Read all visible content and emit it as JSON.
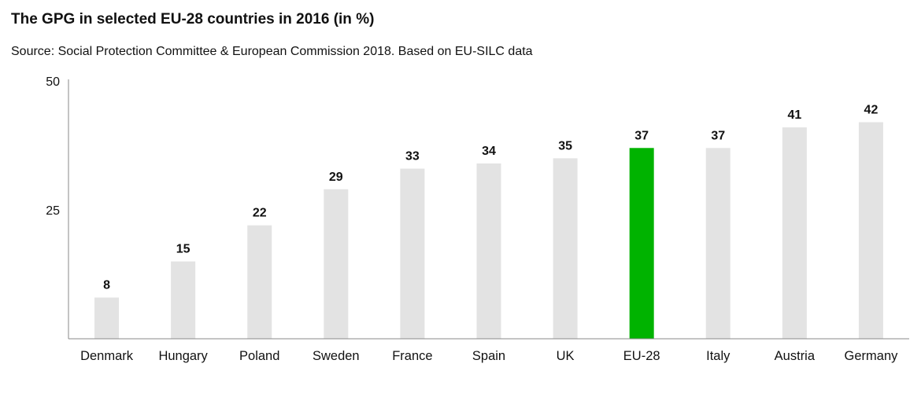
{
  "title": "The GPG in selected EU-28 countries in 2016 (in %)",
  "subtitle": "Source: Social Protection Committee & European Commission 2018. Based on EU-SILC data",
  "colors": {
    "bar": "#e3e3e3",
    "highlight": "#00b300",
    "axis": "#888888",
    "text": "#111111"
  },
  "chart_data": {
    "type": "bar",
    "categories": [
      "Denmark",
      "Hungary",
      "Poland",
      "Sweden",
      "France",
      "Spain",
      "UK",
      "EU-28",
      "Italy",
      "Austria",
      "Germany"
    ],
    "values": [
      8,
      15,
      22,
      29,
      33,
      34,
      35,
      37,
      37,
      41,
      42
    ],
    "value_labels": [
      "8",
      "15",
      "22",
      "29",
      "33",
      "34",
      "35",
      "37",
      "37",
      "41",
      "42"
    ],
    "highlight_category": "EU-28",
    "title": "The GPG in selected EU-28 countries in 2016 (in %)",
    "xlabel": "",
    "ylabel": "",
    "ylim": [
      0,
      50
    ],
    "yticks": [
      25,
      50
    ],
    "ytick_labels": [
      "25",
      "50"
    ],
    "grid": false,
    "legend": "none"
  }
}
